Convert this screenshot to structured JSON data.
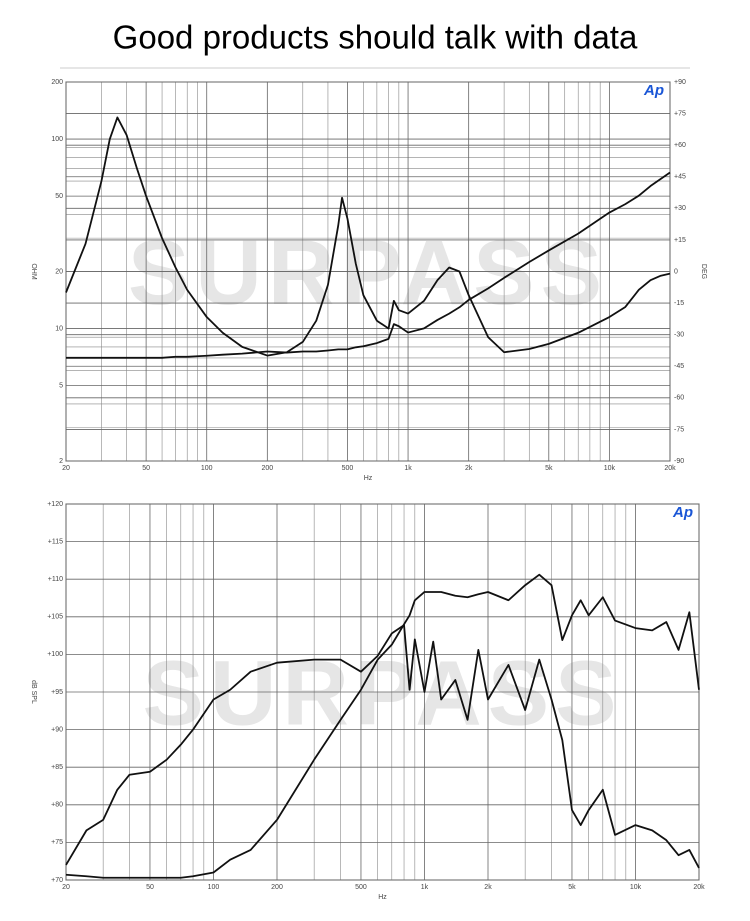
{
  "title": "Good products should talk with data",
  "chart_data": [
    {
      "type": "line",
      "watermark": "SURPASS",
      "logo": "Ap",
      "xlabel": "Hz",
      "ylabel": "OHM",
      "y2label": "DEG",
      "xscale": "log",
      "yscale": "log",
      "grid": true,
      "xlim": [
        20,
        20000
      ],
      "xticks": [
        20,
        50,
        100,
        200,
        500,
        {
          "value": 1000,
          "label": "1k"
        },
        {
          "value": 2000,
          "label": "2k"
        },
        {
          "value": 5000,
          "label": "5k"
        },
        {
          "value": 10000,
          "label": "10k"
        },
        {
          "value": 20000,
          "label": "20k"
        }
      ],
      "xminorticks": [
        30,
        40,
        60,
        70,
        80,
        90,
        300,
        400,
        600,
        700,
        800,
        900,
        3000,
        4000,
        6000,
        7000,
        8000,
        9000
      ],
      "ylim": [
        2,
        200
      ],
      "yticks": [
        2,
        5,
        10,
        20,
        50,
        100,
        200
      ],
      "yminorticks": [
        3,
        4,
        6,
        7,
        8,
        9,
        30,
        40,
        60,
        70,
        80,
        90
      ],
      "y2lim": [
        -90,
        90
      ],
      "y2ticks": [
        {
          "value": 90,
          "label": "+90"
        },
        {
          "value": 75,
          "label": "+75"
        },
        {
          "value": 60,
          "label": "+60"
        },
        {
          "value": 45,
          "label": "+45"
        },
        {
          "value": 30,
          "label": "+30"
        },
        {
          "value": 15,
          "label": "+15"
        },
        0,
        -15,
        -30,
        -45,
        -60,
        -75,
        -90
      ],
      "x": [
        20,
        25,
        30,
        33,
        36,
        40,
        45,
        50,
        60,
        70,
        80,
        100,
        120,
        150,
        200,
        250,
        300,
        350,
        400,
        450,
        470,
        500,
        550,
        600,
        700,
        800,
        850,
        900,
        1000,
        1200,
        1400,
        1600,
        1800,
        2000,
        2500,
        3000,
        4000,
        5000,
        7000,
        10000,
        12000,
        14000,
        16000,
        18000,
        20000
      ],
      "series": [
        {
          "color": "#111111",
          "values": [
            15.5,
            28,
            60,
            100,
            130,
            105,
            70,
            50,
            30,
            21,
            16,
            11.5,
            9.5,
            8,
            7.2,
            7.5,
            8.5,
            11,
            17,
            35,
            49,
            38,
            22,
            15,
            11,
            10,
            14,
            12.5,
            12,
            14,
            18,
            21,
            20,
            15,
            9,
            7.5,
            7.8,
            8.3,
            9.5,
            11.5,
            13,
            16,
            18,
            19,
            19.5
          ]
        },
        {
          "color": "#111111",
          "axis": "y2",
          "values": [
            -41,
            -41,
            -41,
            -41,
            -41,
            -41,
            -41,
            -41,
            -41,
            -40.5,
            -40.5,
            -40,
            -39.5,
            -39,
            -38,
            -38.5,
            -38,
            -38,
            -37.5,
            -37,
            -37,
            -37,
            -36,
            -35.5,
            -34,
            -32,
            -25,
            -26,
            -29,
            -27,
            -23,
            -20,
            -17,
            -13.5,
            -8,
            -3,
            4.5,
            10,
            18,
            28,
            32,
            36,
            40.6,
            44,
            47
          ]
        }
      ]
    },
    {
      "type": "line",
      "watermark": "SURPASS",
      "logo": "Ap",
      "xlabel": "Hz",
      "ylabel": "dB SPL",
      "xscale": "log",
      "grid": true,
      "xlim": [
        20,
        20000
      ],
      "xticks": [
        20,
        50,
        100,
        200,
        500,
        {
          "value": 1000,
          "label": "1k"
        },
        {
          "value": 2000,
          "label": "2k"
        },
        {
          "value": 5000,
          "label": "5k"
        },
        {
          "value": 10000,
          "label": "10k"
        },
        {
          "value": 20000,
          "label": "20k"
        }
      ],
      "xminorticks": [
        30,
        40,
        60,
        70,
        80,
        90,
        300,
        400,
        600,
        700,
        800,
        900,
        3000,
        4000,
        6000,
        7000,
        8000,
        9000
      ],
      "ylim": [
        70,
        120
      ],
      "yticks": [
        {
          "value": 70,
          "label": "+70"
        },
        {
          "value": 75,
          "label": "+75"
        },
        {
          "value": 80,
          "label": "+80"
        },
        {
          "value": 85,
          "label": "+85"
        },
        {
          "value": 90,
          "label": "+90"
        },
        {
          "value": 95,
          "label": "+95"
        },
        {
          "value": 100,
          "label": "+100"
        },
        {
          "value": 105,
          "label": "+105"
        },
        {
          "value": 110,
          "label": "+110"
        },
        {
          "value": 115,
          "label": "+115"
        },
        {
          "value": 120,
          "label": "+120"
        }
      ],
      "x": [
        20,
        25,
        30,
        35,
        40,
        50,
        60,
        70,
        80,
        100,
        120,
        150,
        200,
        300,
        400,
        500,
        600,
        700,
        800,
        850,
        900,
        1000,
        1100,
        1200,
        1400,
        1600,
        1800,
        2000,
        2500,
        3000,
        3500,
        4000,
        4500,
        5000,
        5500,
        6000,
        7000,
        8000,
        10000,
        12000,
        14000,
        16000,
        18000,
        20000
      ],
      "series": [
        {
          "color": "#111111",
          "values": [
            72,
            76.6,
            78,
            82,
            84,
            84.4,
            86,
            88,
            90,
            94,
            95.3,
            97.7,
            98.9,
            99.3,
            99.3,
            97.7,
            99.8,
            102.8,
            103.9,
            95.3,
            102,
            95,
            101.7,
            94,
            96.6,
            91.3,
            100.6,
            94,
            98.6,
            92.6,
            99.3,
            94,
            88.6,
            79.3,
            77.3,
            79.3,
            82,
            76,
            77.3,
            76.6,
            75.3,
            73.3,
            74,
            71.6
          ]
        },
        {
          "color": "#111111",
          "values": [
            70.7,
            70.5,
            70.3,
            70.3,
            70.3,
            70.3,
            70.3,
            70.3,
            70.5,
            71,
            72.7,
            74,
            78,
            86,
            91.3,
            95.3,
            99.3,
            101.3,
            104,
            105.2,
            107.2,
            108.3,
            108.3,
            108.3,
            107.8,
            107.6,
            108,
            108.3,
            107.2,
            109.2,
            110.6,
            109.2,
            101.9,
            105.2,
            107.2,
            105.2,
            107.6,
            104.5,
            103.5,
            103.2,
            104.3,
            100.6,
            105.6,
            95.3
          ]
        }
      ]
    }
  ]
}
